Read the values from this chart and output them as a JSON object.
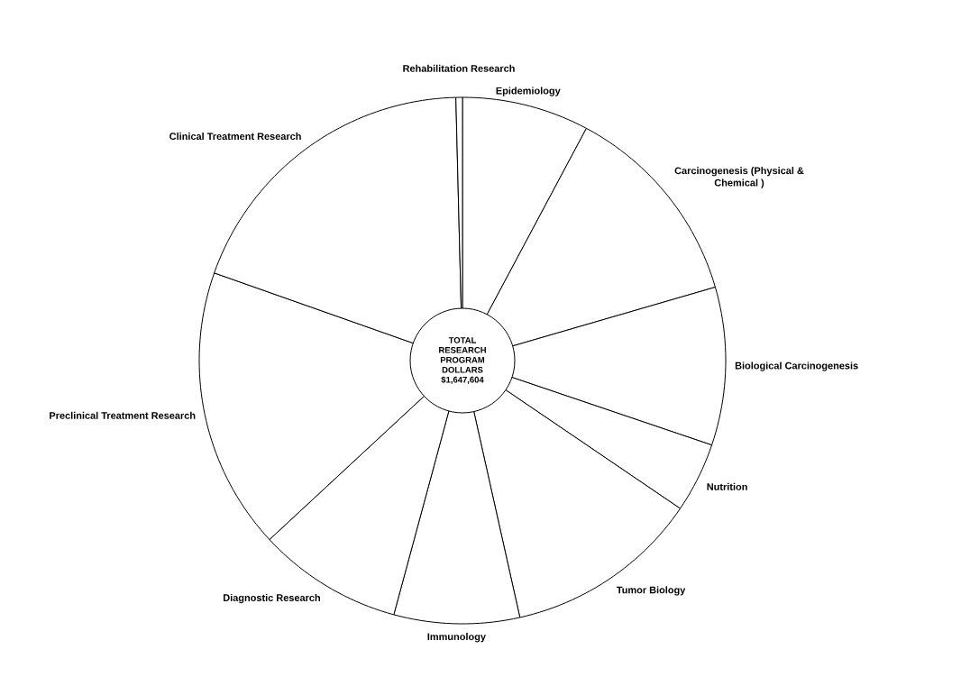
{
  "chart_data": {
    "type": "pie",
    "categories": [
      "Epidemiology",
      "Carcinogenesis (Physical & Chemical )",
      "Biological Carcinogenesis",
      "Nutrition",
      "Tumor Biology",
      "Immunology",
      "Diagnostic Research",
      "Preclinical Treatment Research",
      "Clinical Treatment Research",
      "Rehabilitation Research"
    ],
    "values": [
      7.8,
      12.7,
      9.7,
      4.3,
      12.0,
      7.7,
      8.9,
      17.3,
      19.2,
      0.4
    ],
    "colors": [
      "#ffffff",
      "#ffffff",
      "#ffffff",
      "#ffffff",
      "#ffffff",
      "#ffffff",
      "#ffffff",
      "#ffffff",
      "#ffffff",
      "#ffffff"
    ],
    "annotations": [
      "TOTAL RESEARCH PROGRAM DOLLARS $1,647,604"
    ]
  }
}
